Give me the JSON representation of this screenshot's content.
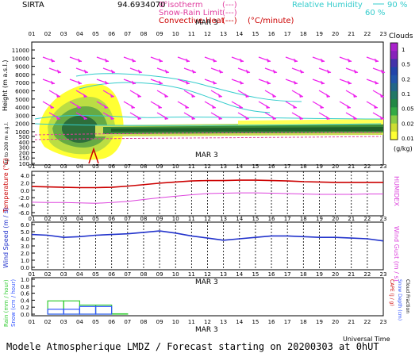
{
  "header": {
    "site": "SIRTA",
    "coords": "94.6934070",
    "legend_left": [
      {
        "label": "0°isotherm",
        "swatch": "(---)",
        "color": "#e040a0"
      },
      {
        "label": "Snow-Rain Limit",
        "swatch": "(---)",
        "color": "#e040a0"
      },
      {
        "label": "Convective Heat",
        "swatch": "(---)",
        "color": "#cc0000"
      }
    ],
    "convective_unit": "(°C/minute)",
    "legend_right": {
      "label": "Relative Humidity",
      "v90": "90 %",
      "v60": "60 %",
      "color": "#33cccc"
    }
  },
  "hours": [
    "01",
    "02",
    "03",
    "04",
    "05",
    "06",
    "07",
    "08",
    "09",
    "10",
    "11",
    "12",
    "13",
    "14",
    "15",
    "16",
    "17",
    "18",
    "19",
    "20",
    "21",
    "22",
    "23"
  ],
  "date_label": "MAR  3",
  "panel1": {
    "y_axis_title": "Height (m a.s.l.)",
    "y_axis_sub": "Up to 200 m a.g.l.",
    "y_ticks": [
      "11000",
      "10000",
      "9000",
      "8000",
      "7000",
      "6000",
      "5000",
      "4000",
      "3000",
      "2000",
      "1000",
      "500",
      "400",
      "300",
      "200",
      "150",
      "100"
    ],
    "colorbar_title": "Clouds",
    "colorbar_ticks": [
      "1",
      "0.5",
      "0.2",
      "0.1",
      "0.05",
      "0.02",
      "0.01"
    ],
    "colorbar_unit": "(g/kg)"
  },
  "panel2": {
    "left_title": "Temperature (°C)",
    "right_title": "HUMIDEX",
    "y_ticks": [
      "4.0",
      "2.0",
      "0.0",
      "-2.0",
      "-4.0",
      "-6.0"
    ]
  },
  "panel3": {
    "left_title": "Wind Speed (m / s)",
    "right_title": "Wind Gust (m / s)",
    "y_ticks": [
      "6.0",
      "5.0",
      "4.0",
      "3.0",
      "2.0",
      "1.0",
      "0.0"
    ]
  },
  "panel4": {
    "left_title_1": "Rain (mm / hour)",
    "left_title_2": "Snow (cm / hour)",
    "right_title_1": "CAPE (J / g)",
    "right_title_2": "Snow Depth (cm)",
    "right_title_3": "Cloud Fraction",
    "y_ticks": [
      "1.0",
      "0.8",
      "0.6",
      "0.4",
      "0.2",
      "0.0"
    ]
  },
  "x_axis_title": "Universal Time",
  "footer": "Modele Atmospherique LMDZ / Forecast starting on 20200303 at 0hUT",
  "chart_data": [
    {
      "type": "line",
      "title": "Temperature",
      "ylabel": "Temperature (°C)",
      "y2label": "HUMIDEX",
      "ylim": [
        -6,
        4
      ],
      "x": [
        "01",
        "02",
        "03",
        "04",
        "05",
        "06",
        "07",
        "08",
        "09",
        "10",
        "11",
        "12",
        "13",
        "14",
        "15",
        "16",
        "17",
        "18",
        "19",
        "20",
        "21",
        "22",
        "23"
      ],
      "series": [
        {
          "name": "Temperature",
          "color": "#cc0000",
          "values": [
            1.0,
            0.9,
            0.8,
            0.7,
            0.7,
            0.8,
            1.1,
            1.5,
            1.9,
            2.2,
            2.5,
            2.6,
            2.6,
            2.7,
            2.7,
            2.6,
            2.5,
            2.3,
            2.2,
            2.1,
            2.1,
            2.1,
            2.1
          ]
        },
        {
          "name": "HUMIDEX",
          "color": "#dd44dd",
          "values": [
            -3.2,
            -3.3,
            -3.3,
            -3.4,
            -3.5,
            -3.3,
            -3.0,
            -2.5,
            -2.0,
            -1.6,
            -1.2,
            -0.9,
            -0.8,
            -0.7,
            -0.7,
            -0.8,
            -0.9,
            -1.0,
            -1.1,
            -1.1,
            -1.1,
            -1.0,
            -1.0
          ]
        }
      ]
    },
    {
      "type": "line",
      "title": "Wind",
      "ylabel": "Wind Speed (m / s)",
      "ylim": [
        0,
        6
      ],
      "x": [
        "01",
        "02",
        "03",
        "04",
        "05",
        "06",
        "07",
        "08",
        "09",
        "10",
        "11",
        "12",
        "13",
        "14",
        "15",
        "16",
        "17",
        "18",
        "19",
        "20",
        "21",
        "22",
        "23"
      ],
      "series": [
        {
          "name": "Wind Speed",
          "color": "#2233cc",
          "values": [
            4.6,
            4.5,
            4.2,
            4.3,
            4.5,
            4.6,
            4.7,
            4.9,
            5.1,
            4.8,
            4.4,
            4.1,
            3.8,
            4.0,
            4.2,
            4.4,
            4.4,
            4.3,
            4.2,
            4.2,
            4.1,
            4.0,
            3.7
          ]
        }
      ]
    },
    {
      "type": "bar",
      "title": "Precipitation",
      "ylabel": "Rain (mm / hour)",
      "ylim": [
        0,
        1.0
      ],
      "x": [
        "01",
        "02",
        "03",
        "04",
        "05",
        "06",
        "07",
        "08",
        "09",
        "10",
        "11",
        "12",
        "13",
        "14",
        "15",
        "16",
        "17",
        "18",
        "19",
        "20",
        "21",
        "22",
        "23"
      ],
      "series": [
        {
          "name": "Rain",
          "color": "#33cc33",
          "values": [
            0,
            0.38,
            0.38,
            0.26,
            0.26,
            0.01,
            0,
            0,
            0,
            0,
            0,
            0,
            0,
            0,
            0,
            0,
            0,
            0,
            0,
            0,
            0,
            0,
            0
          ]
        },
        {
          "name": "Snow",
          "color": "#3355ff",
          "values": [
            0,
            0.14,
            0.14,
            0.22,
            0.22,
            0.0,
            0,
            0,
            0,
            0,
            0,
            0,
            0,
            0,
            0,
            0,
            0,
            0,
            0,
            0,
            0,
            0,
            0
          ]
        }
      ]
    }
  ]
}
